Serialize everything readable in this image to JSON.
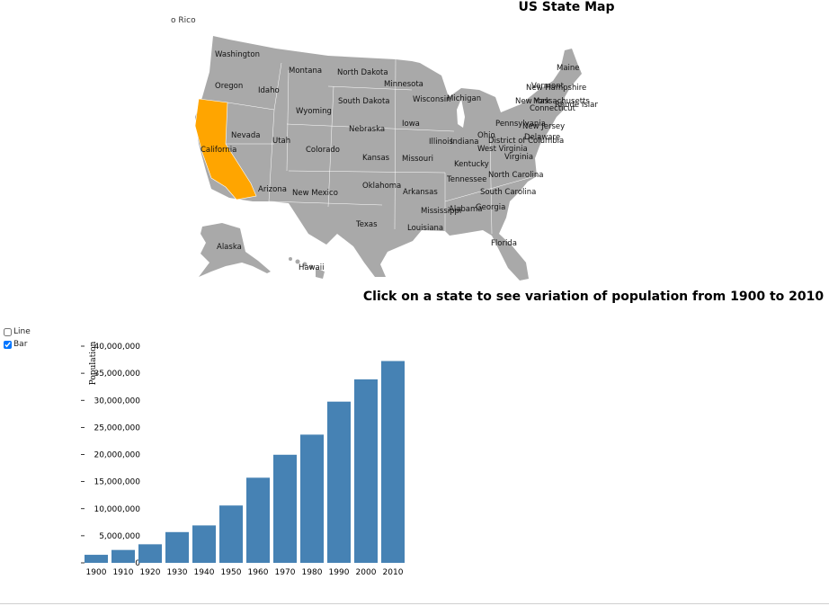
{
  "page": {
    "title": "US State Map",
    "clipped_label": "o Rico",
    "instruction": "Click on a state to see variation of population from 1900 to 2010"
  },
  "controls": {
    "line_label": "Line",
    "line_checked": false,
    "bar_label": "Bar",
    "bar_checked": true
  },
  "map": {
    "selected_state": "California",
    "colors": {
      "default": "#a9a9a9",
      "selected": "#ffa500",
      "border": "#ffffff"
    },
    "state_labels": [
      "Washington",
      "Oregon",
      "Idaho",
      "Montana",
      "North Dakota",
      "Minnesota",
      "South Dakota",
      "Wisconsin",
      "Michigan",
      "Wyoming",
      "Nevada",
      "California",
      "Utah",
      "Colorado",
      "Nebraska",
      "Iowa",
      "Illinois",
      "Indiana",
      "Ohio",
      "Pennsylvania",
      "New Jersey",
      "Delaware",
      "District of Columbia",
      "West Virginia",
      "Virginia",
      "Kentucky",
      "Kansas",
      "Missouri",
      "Tennessee",
      "North Carolina",
      "South Carolina",
      "Arizona",
      "New Mexico",
      "Oklahoma",
      "Arkansas",
      "Mississippi",
      "Alabama",
      "Georgia",
      "Texas",
      "Louisiana",
      "Florida",
      "Alaska",
      "Hawaii",
      "Maine",
      "Vermont",
      "New Hampshire",
      "New York",
      "Massachusetts",
      "Rhode Island",
      "Connecticut"
    ]
  },
  "chart_data": {
    "type": "bar",
    "title": "",
    "xlabel": "",
    "ylabel": "Population",
    "categories": [
      "1900",
      "1910",
      "1920",
      "1930",
      "1940",
      "1950",
      "1960",
      "1970",
      "1980",
      "1990",
      "2000",
      "2010"
    ],
    "values": [
      1485053,
      2377549,
      3426861,
      5677251,
      6907387,
      10586223,
      15717204,
      19953134,
      23667902,
      29760021,
      33871648,
      37253956
    ],
    "yticks": [
      "0",
      "5,000,000",
      "10,000,000",
      "15,000,000",
      "20,000,000",
      "25,000,000",
      "30,000,000",
      "35,000,000",
      "40,000,000"
    ],
    "ylim": [
      0,
      40000000
    ],
    "bar_color": "#4682b4",
    "grid": false,
    "legend": "none"
  }
}
